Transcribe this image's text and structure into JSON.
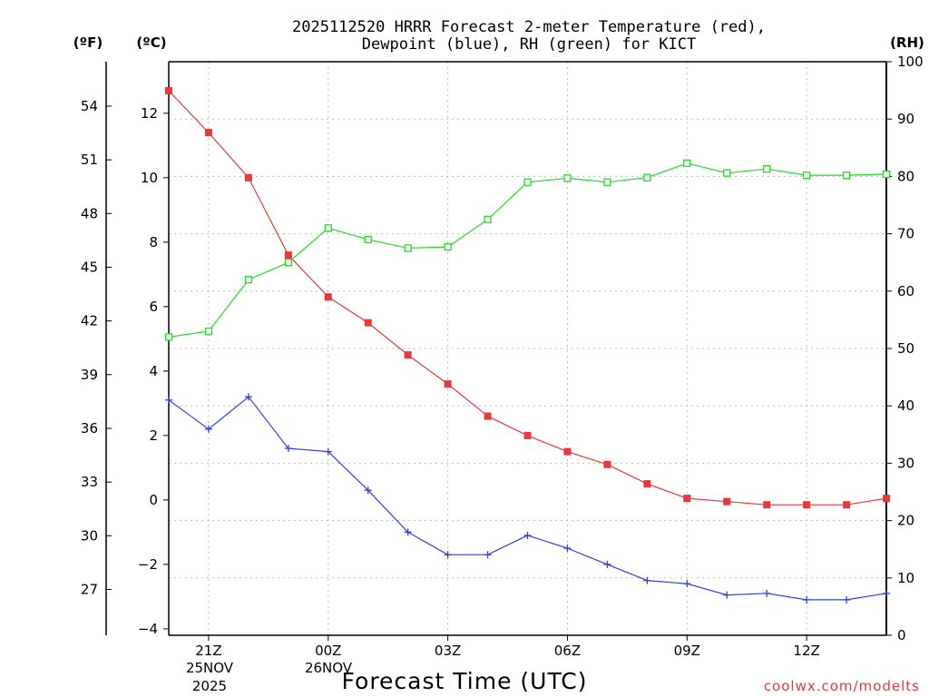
{
  "title_line1": "2025112520 HRRR Forecast 2-meter Temperature (red),",
  "title_line2": "Dewpoint (blue), RH (green) for KICT",
  "units": {
    "f": "(ºF)",
    "c": "(ºC)",
    "rh": "(RH)"
  },
  "xlabel": "Forecast Time (UTC)",
  "credit": "coolwx.com/modelts",
  "date_labels": [
    "25NOV",
    "26NOV"
  ],
  "year_label": "2025",
  "chart_data": {
    "type": "line",
    "title": "2025112520 HRRR Forecast 2-meter Temperature (red), Dewpoint (blue), RH (green) for KICT",
    "xlabel": "Forecast Time (UTC)",
    "x_range": [
      20,
      38
    ],
    "x_ticks": [
      {
        "x": 21,
        "label": "21Z"
      },
      {
        "x": 24,
        "label": "00Z"
      },
      {
        "x": 27,
        "label": "03Z"
      },
      {
        "x": 30,
        "label": "06Z"
      },
      {
        "x": 33,
        "label": "09Z"
      },
      {
        "x": 36,
        "label": "12Z"
      }
    ],
    "x": [
      20,
      21,
      22,
      23,
      24,
      25,
      26,
      27,
      28,
      29,
      30,
      31,
      32,
      33,
      34,
      35,
      36,
      37,
      38
    ],
    "celsius_axis": {
      "ylim": [
        -4.2,
        13.6
      ],
      "ticks": [
        -4,
        -2,
        0,
        2,
        4,
        6,
        8,
        10,
        12
      ]
    },
    "fahrenheit_axis": {
      "ticks": [
        27,
        30,
        33,
        36,
        39,
        42,
        45,
        48,
        51,
        54
      ]
    },
    "rh_axis": {
      "ylim": [
        0,
        100
      ],
      "ticks": [
        0,
        10,
        20,
        30,
        40,
        50,
        60,
        70,
        80,
        90,
        100
      ]
    },
    "series": [
      {
        "name": "Temperature",
        "color": "#e8393a",
        "marker": "filled-square",
        "axis": "celsius",
        "values": [
          12.7,
          11.4,
          10.0,
          7.6,
          6.3,
          5.5,
          4.5,
          3.6,
          2.6,
          2.0,
          1.5,
          1.1,
          0.5,
          0.05,
          -0.05,
          -0.15,
          -0.15,
          -0.15,
          0.05
        ]
      },
      {
        "name": "Dewpoint",
        "color": "#2f3fe8",
        "marker": "plus",
        "axis": "celsius",
        "values": [
          3.1,
          2.2,
          3.2,
          1.6,
          1.5,
          0.3,
          -1.0,
          -1.7,
          -1.7,
          -1.1,
          -1.5,
          -2.0,
          -2.5,
          -2.6,
          -2.95,
          -2.9,
          -3.1,
          -3.1,
          -2.9
        ]
      },
      {
        "name": "RH",
        "color": "#22dd22",
        "marker": "open-square",
        "axis": "rh",
        "values": [
          52.0,
          53.0,
          62.0,
          65.0,
          71.0,
          69.0,
          67.5,
          67.7,
          72.5,
          79.0,
          79.7,
          79.0,
          79.8,
          82.3,
          80.6,
          81.3,
          80.2,
          80.2,
          80.4
        ]
      }
    ]
  }
}
